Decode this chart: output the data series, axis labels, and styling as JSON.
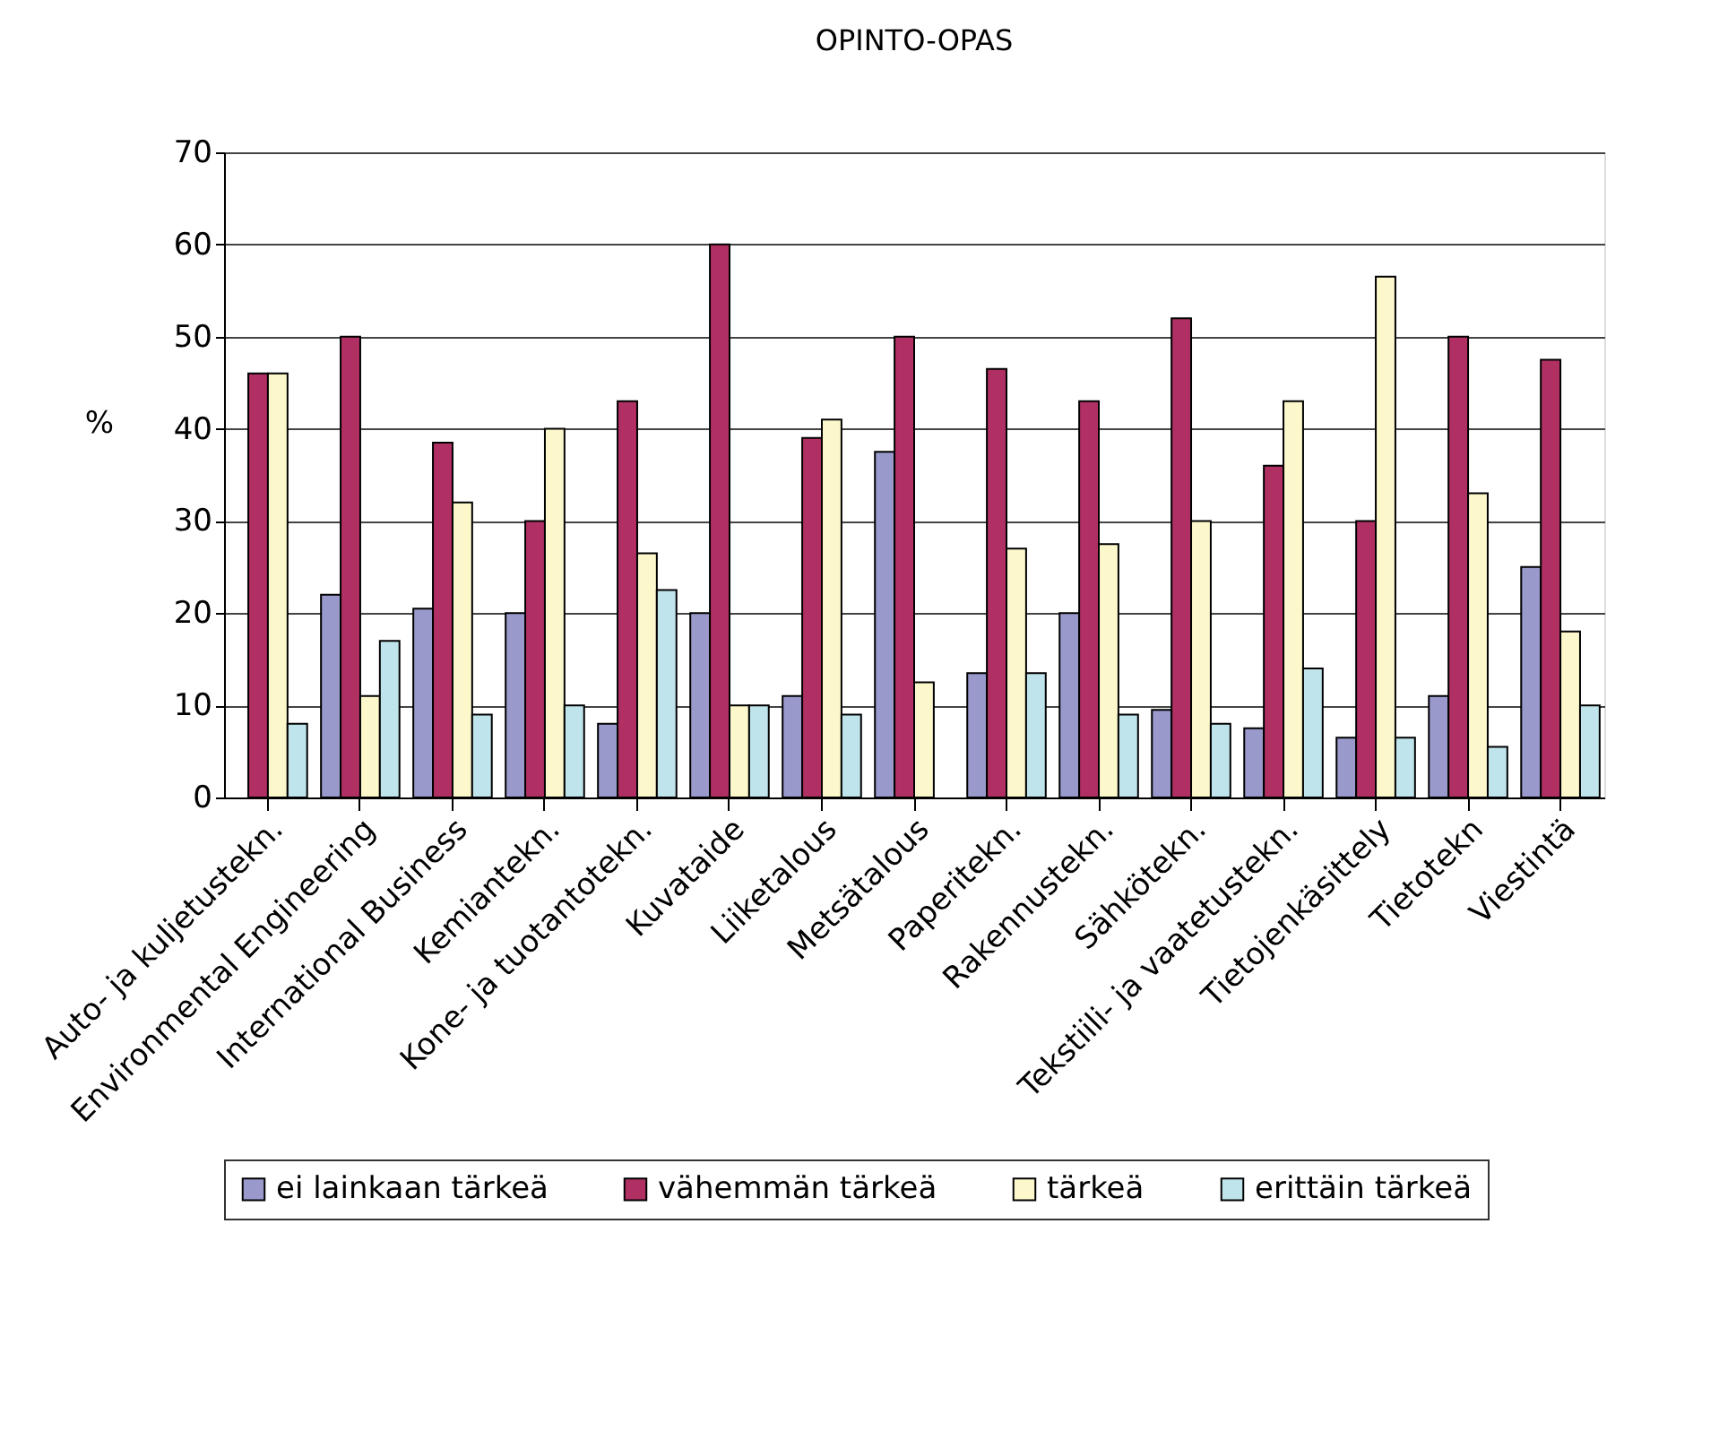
{
  "chart_data": {
    "type": "bar",
    "title": "OPINTO-OPAS",
    "ylabel": "%",
    "categories": [
      "Auto- ja kuljetustekn.",
      "Environmental Engineering",
      "International Business",
      "Kemiantekn.",
      "Kone- ja tuotantotekn.",
      "Kuvataide",
      "Liiketalous",
      "Metsätalous",
      "Paperitekn.",
      "Rakennustekn.",
      "Sähkötekn.",
      "Tekstiili- ja vaatetustekn.",
      "Tietojenkäsittely",
      "Tietotekn",
      "Viestintä"
    ],
    "series": [
      {
        "name": "ei lainkaan tärkeä",
        "color": "#9999cc",
        "values": [
          null,
          22,
          20.5,
          20,
          8,
          20,
          11,
          37.5,
          13.5,
          20,
          9.5,
          7.5,
          6.5,
          11,
          25
        ]
      },
      {
        "name": "vähemmän tärkeä",
        "color": "#b03064",
        "values": [
          46,
          50,
          38.5,
          30,
          43,
          60,
          39,
          50,
          46.5,
          43,
          52,
          36,
          30,
          50,
          47.5
        ]
      },
      {
        "name": "tärkeä",
        "color": "#fdf8cc",
        "values": [
          46,
          11,
          32,
          40,
          26.5,
          10,
          41,
          12.5,
          27,
          27.5,
          30,
          43,
          56.5,
          33,
          18
        ]
      },
      {
        "name": "erittäin tärkeä",
        "color": "#c0e4ec",
        "values": [
          8,
          17,
          9,
          10,
          22.5,
          10,
          9,
          null,
          13.5,
          9,
          8,
          14,
          6.5,
          5.5,
          10
        ]
      }
    ],
    "ylim": [
      0,
      70
    ],
    "yticks": [
      0,
      10,
      20,
      30,
      40,
      50,
      60,
      70
    ],
    "grid": "y",
    "legend": "bottom"
  }
}
